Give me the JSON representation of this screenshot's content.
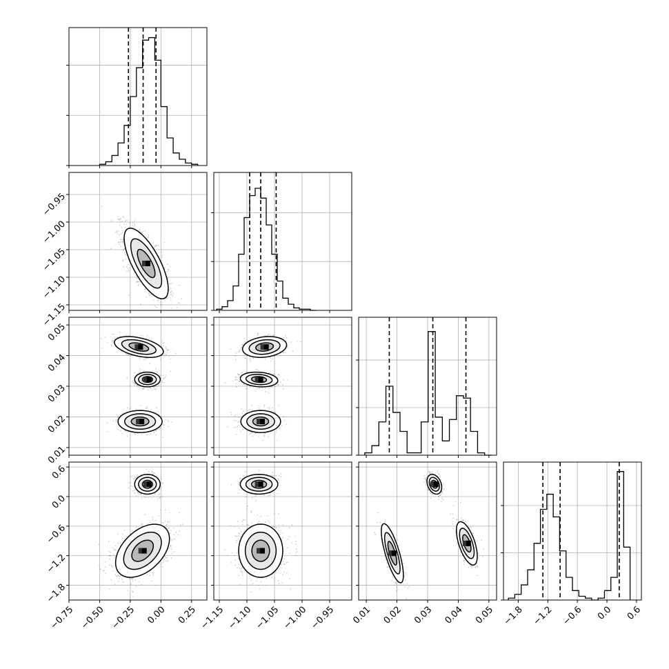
{
  "chart_data": {
    "type": "corner",
    "n_params": 4,
    "params": [
      {
        "range": [
          -0.75,
          0.375
        ],
        "ticks": [
          -0.75,
          -0.5,
          -0.25,
          0.0,
          0.25
        ],
        "tick_labels": [
          "−0.75",
          "−0.50",
          "−0.25",
          "0.00",
          "0.25"
        ],
        "quantiles": [
          -0.265,
          -0.145,
          -0.04
        ],
        "hist": {
          "edges": [
            -0.5,
            -0.45,
            -0.4,
            -0.35,
            -0.3,
            -0.25,
            -0.2,
            -0.15,
            -0.1,
            -0.05,
            0.0,
            0.05,
            0.1,
            0.15,
            0.2,
            0.25,
            0.3
          ],
          "counts": [
            1,
            3,
            8,
            18,
            32,
            55,
            78,
            100,
            102,
            84,
            47,
            22,
            10,
            5,
            2,
            1
          ],
          "ticks": [
            0,
            40,
            80,
            120
          ],
          "top": 110
        }
      },
      {
        "range": [
          -1.16,
          -0.91
        ],
        "ticks": [
          -1.15,
          -1.1,
          -1.05,
          -1.0,
          -0.95
        ],
        "tick_labels": [
          "−1.15",
          "−1.10",
          "−1.05",
          "−1.00",
          "−0.95"
        ],
        "quantiles": [
          -1.095,
          -1.075,
          -1.047
        ],
        "hist": {
          "edges": [
            -1.155,
            -1.145,
            -1.135,
            -1.125,
            -1.115,
            -1.105,
            -1.095,
            -1.085,
            -1.075,
            -1.065,
            -1.055,
            -1.045,
            -1.035,
            -1.025,
            -1.015,
            -1.005,
            -0.995,
            -0.985,
            -0.975
          ],
          "counts": [
            1,
            3,
            8,
            20,
            46,
            76,
            94,
            100,
            92,
            70,
            46,
            24,
            10,
            5,
            2,
            1,
            1,
            0
          ],
          "ticks": [
            0,
            40,
            80,
            120
          ],
          "top": 113
        }
      },
      {
        "range": [
          0.0075,
          0.0525
        ],
        "ticks": [
          0.01,
          0.02,
          0.03,
          0.04,
          0.05
        ],
        "tick_labels": [
          "0.01",
          "0.02",
          "0.03",
          "0.04",
          "0.05"
        ],
        "quantiles": [
          0.0175,
          0.0317,
          0.0425
        ],
        "hist": {
          "edges": [
            0.0095,
            0.0118,
            0.0141,
            0.0164,
            0.0187,
            0.021,
            0.0233,
            0.0256,
            0.0279,
            0.0302,
            0.0325,
            0.0348,
            0.0371,
            0.0394,
            0.0417,
            0.044,
            0.0463,
            0.0486,
            0.0509
          ],
          "counts": [
            1,
            4,
            14,
            29,
            18,
            10,
            1,
            1,
            14,
            52,
            16,
            6,
            15,
            25,
            24,
            10,
            1,
            0
          ],
          "ticks": [
            0,
            20,
            40,
            60
          ],
          "top": 58
        }
      },
      {
        "range": [
          -2.1,
          0.7
        ],
        "ticks": [
          -1.8,
          -1.2,
          -0.6,
          0.0,
          0.6
        ],
        "tick_labels": [
          "−1.8",
          "−1.2",
          "−0.6",
          "0.0",
          "0.6"
        ],
        "quantiles": [
          -1.3,
          -0.95,
          0.25
        ],
        "hist": {
          "edges": [
            -2.0,
            -1.87,
            -1.74,
            -1.61,
            -1.48,
            -1.35,
            -1.22,
            -1.09,
            -0.96,
            -0.83,
            -0.7,
            -0.57,
            -0.44,
            -0.31,
            -0.18,
            -0.05,
            0.08,
            0.21,
            0.34,
            0.47
          ],
          "counts": [
            1,
            3,
            8,
            16,
            30,
            48,
            56,
            44,
            26,
            12,
            5,
            2,
            1,
            0,
            1,
            5,
            12,
            68,
            28,
            0
          ],
          "ticks": [
            0,
            25,
            50,
            75
          ],
          "top": 73
        }
      }
    ],
    "pairs": [
      {
        "row": 1,
        "col": 0,
        "modes": [
          {
            "mx": -0.12,
            "my": -1.075,
            "sx": 0.09,
            "sy": 0.032,
            "rho": -0.72,
            "w": 1.0
          }
        ]
      },
      {
        "row": 2,
        "col": 0,
        "modes": [
          {
            "mx": -0.17,
            "my": 0.0185,
            "sx": 0.09,
            "sy": 0.0018,
            "rho": 0.0,
            "w": 0.33
          },
          {
            "mx": -0.11,
            "my": 0.0322,
            "sx": 0.052,
            "sy": 0.0012,
            "rho": 0.0,
            "w": 0.34
          },
          {
            "mx": -0.18,
            "my": 0.0428,
            "sx": 0.1,
            "sy": 0.0017,
            "rho": -0.45,
            "w": 0.33
          }
        ]
      },
      {
        "row": 2,
        "col": 1,
        "modes": [
          {
            "mx": -1.075,
            "my": 0.0185,
            "sx": 0.018,
            "sy": 0.0018,
            "rho": 0.0,
            "w": 0.33
          },
          {
            "mx": -1.078,
            "my": 0.0322,
            "sx": 0.017,
            "sy": 0.0012,
            "rho": -0.15,
            "w": 0.34
          },
          {
            "mx": -1.068,
            "my": 0.0428,
            "sx": 0.02,
            "sy": 0.0017,
            "rho": 0.2,
            "w": 0.33
          }
        ]
      },
      {
        "row": 3,
        "col": 0,
        "modes": [
          {
            "mx": -0.11,
            "my": 0.25,
            "sx": 0.052,
            "sy": 0.1,
            "rho": 0.0,
            "w": 0.34
          },
          {
            "mx": -0.15,
            "my": -1.1,
            "sx": 0.11,
            "sy": 0.27,
            "rho": 0.45,
            "w": 0.66
          }
        ]
      },
      {
        "row": 3,
        "col": 1,
        "modes": [
          {
            "mx": -1.078,
            "my": 0.25,
            "sx": 0.017,
            "sy": 0.1,
            "rho": 0.0,
            "w": 0.34
          },
          {
            "mx": -1.075,
            "my": -1.1,
            "sx": 0.02,
            "sy": 0.27,
            "rho": 0.0,
            "w": 0.66
          }
        ]
      },
      {
        "row": 3,
        "col": 2,
        "modes": [
          {
            "mx": 0.0322,
            "my": 0.25,
            "sx": 0.0012,
            "sy": 0.1,
            "rho": -0.3,
            "w": 0.34
          },
          {
            "mx": 0.0185,
            "my": -1.15,
            "sx": 0.0018,
            "sy": 0.3,
            "rho": -0.75,
            "w": 0.33
          },
          {
            "mx": 0.0428,
            "my": -0.95,
            "sx": 0.0017,
            "sy": 0.22,
            "rho": -0.6,
            "w": 0.33
          }
        ]
      }
    ],
    "grid": true,
    "contour_levels": 3,
    "colors": {
      "line": "#000000",
      "grid": "#b0b0b0",
      "density": "#000000"
    }
  }
}
